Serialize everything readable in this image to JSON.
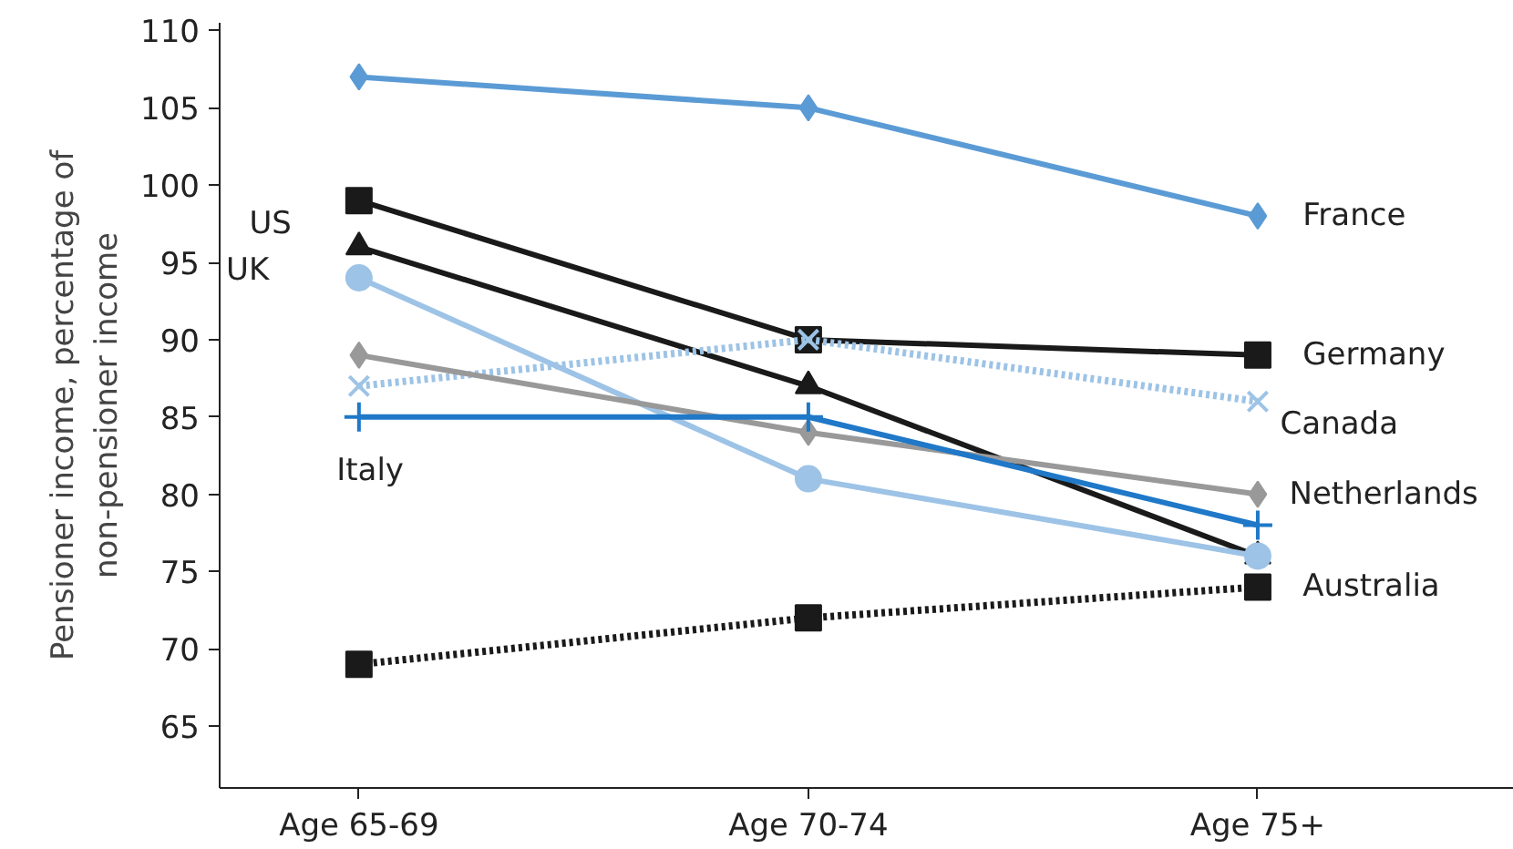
{
  "chart_data": {
    "type": "line",
    "ylabel": "Pensioner income, percentage of\nnon-pensioner income",
    "categories": [
      "Age 65-69",
      "Age 70-74",
      "Age 75+"
    ],
    "ylim": [
      61,
      110.5
    ],
    "yticks": [
      65,
      70,
      75,
      80,
      85,
      90,
      95,
      100,
      105,
      110
    ],
    "grid": false,
    "series": [
      {
        "name": "France",
        "color": "#5b9bd5",
        "marker": "diamond",
        "line_style": "solid",
        "values": [
          107,
          105,
          98
        ]
      },
      {
        "name": "Germany",
        "color": "#1a1a1a",
        "marker": "square",
        "line_style": "solid",
        "values": [
          99,
          90,
          89
        ]
      },
      {
        "name": "US",
        "color": "#1a1a1a",
        "marker": "triangle",
        "line_style": "solid",
        "values": [
          96,
          87,
          76
        ]
      },
      {
        "name": "UK",
        "color": "#9dc3e6",
        "marker": "circle",
        "line_style": "solid",
        "values": [
          94,
          81,
          76
        ]
      },
      {
        "name": "Canada",
        "color": "#9dc3e6",
        "marker": "cross",
        "line_style": "dotted",
        "values": [
          87,
          90,
          86
        ]
      },
      {
        "name": "Netherlands",
        "color": "#999999",
        "marker": "diamond",
        "line_style": "solid",
        "values": [
          89,
          84,
          80
        ]
      },
      {
        "name": "Italy",
        "color": "#1f78c8",
        "marker": "plus",
        "line_style": "solid",
        "values": [
          85,
          85,
          78
        ]
      },
      {
        "name": "Australia",
        "color": "#1a1a1a",
        "marker": "square",
        "line_style": "dotted",
        "values": [
          69,
          72,
          74
        ]
      }
    ]
  }
}
